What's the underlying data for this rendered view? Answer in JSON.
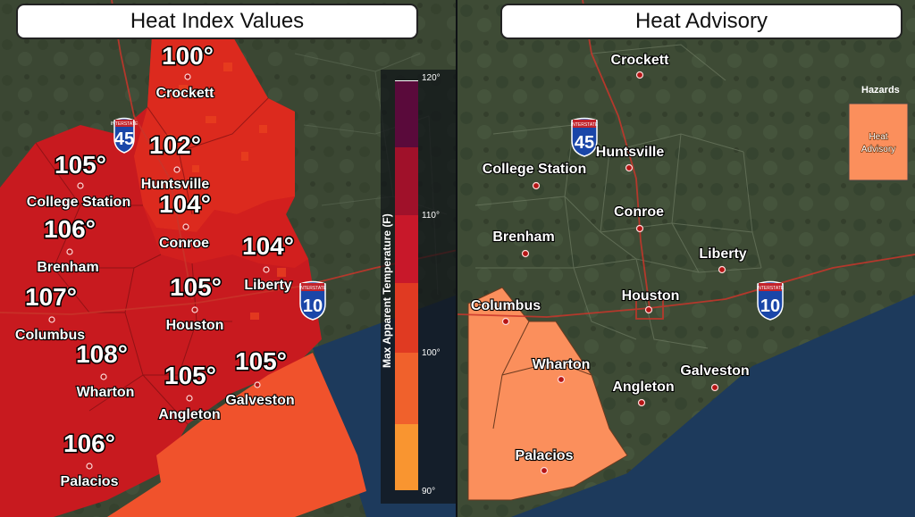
{
  "panels": {
    "left": {
      "title": "Heat Index Values"
    },
    "right": {
      "title": "Heat Advisory"
    }
  },
  "colors": {
    "land": "#3d4a34",
    "water": "#1d3a5c",
    "heat_100": "#e8361d",
    "heat_105": "#c81a1f",
    "heat_mid": "#d92a1e",
    "gulf_heat": "#f0522c",
    "advisory": "#fb8f5c",
    "road": "#c9352a"
  },
  "left_map": {
    "cities": [
      {
        "name": "Crockett",
        "temp": "100°"
      },
      {
        "name": "Huntsville",
        "temp": "102°"
      },
      {
        "name": "College Station",
        "temp": "105°"
      },
      {
        "name": "Conroe",
        "temp": "104°"
      },
      {
        "name": "Brenham",
        "temp": "106°"
      },
      {
        "name": "Liberty",
        "temp": "104°"
      },
      {
        "name": "Columbus",
        "temp": "107°"
      },
      {
        "name": "Houston",
        "temp": "105°"
      },
      {
        "name": "Wharton",
        "temp": "108°"
      },
      {
        "name": "Angleton",
        "temp": "105°"
      },
      {
        "name": "Galveston",
        "temp": "105°"
      },
      {
        "name": "Palacios",
        "temp": "106°"
      }
    ],
    "legend": {
      "title": "Max Apparent Temperature (F)",
      "ticks": [
        "120°",
        "110°",
        "100°",
        "90°"
      ]
    },
    "highways": {
      "i45": "45",
      "i10": "10",
      "shield_top": "INTERSTATE"
    }
  },
  "right_map": {
    "cities": [
      "Crockett",
      "Huntsville",
      "College Station",
      "Conroe",
      "Brenham",
      "Liberty",
      "Columbus",
      "Houston",
      "Wharton",
      "Galveston",
      "Angleton",
      "Palacios"
    ],
    "hazards": {
      "title": "Hazards",
      "item": [
        "Heat",
        "Advisory"
      ]
    },
    "highways": {
      "i45": "45",
      "i10": "10",
      "shield_top": "INTERSTATE"
    }
  }
}
